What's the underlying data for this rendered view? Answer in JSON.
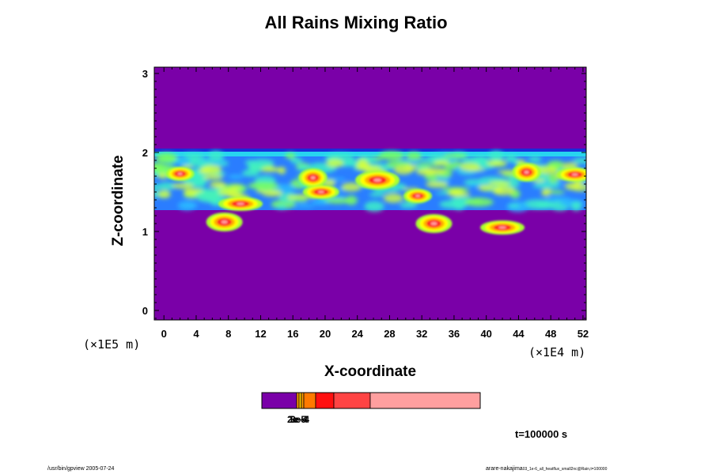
{
  "chart_data": {
    "type": "heatmap",
    "title": "All Rains Mixing Ratio",
    "xlabel": "X-coordinate",
    "ylabel": "Z-coordinate",
    "x_unit_label": "(×1E4 m)",
    "y_unit_label": "(×1E5 m)",
    "x_ticks": [
      0,
      4,
      8,
      12,
      16,
      20,
      24,
      28,
      32,
      36,
      40,
      44,
      48,
      52
    ],
    "y_ticks": [
      0,
      1,
      2,
      3
    ],
    "xlim": [
      -1.2,
      52.4
    ],
    "ylim": [
      -0.12,
      3.08
    ],
    "cloud_layer": {
      "z_bottom": 1.27,
      "z_top": 2.05
    },
    "rain_cores": [
      {
        "x": 2.0,
        "z": 1.73
      },
      {
        "x": 7.5,
        "z": 1.12
      },
      {
        "x": 9.5,
        "z": 1.35
      },
      {
        "x": 18.5,
        "z": 1.68
      },
      {
        "x": 19.5,
        "z": 1.5
      },
      {
        "x": 26.5,
        "z": 1.65
      },
      {
        "x": 31.5,
        "z": 1.45
      },
      {
        "x": 33.5,
        "z": 1.1
      },
      {
        "x": 42.0,
        "z": 1.05
      },
      {
        "x": 45.0,
        "z": 1.75
      },
      {
        "x": 51.0,
        "z": 1.72
      }
    ],
    "colorbar": {
      "colors": [
        "#7a00a8",
        "#ff9900",
        "#ffcc00",
        "#ff7a00",
        "#ff1010",
        "#ff4444",
        "#ff9f9f"
      ],
      "tick_labels": [
        "2e-5",
        "1e-4",
        "3e-4"
      ]
    },
    "time_label": "t=100000 s",
    "footer_left": "/usr/bin/gpview 2005-07-24",
    "footer_right": "arare-nakajima",
    "footer_right_small": "03_1e-6_all_heatflux_small2nc@Rain,t=100000"
  }
}
